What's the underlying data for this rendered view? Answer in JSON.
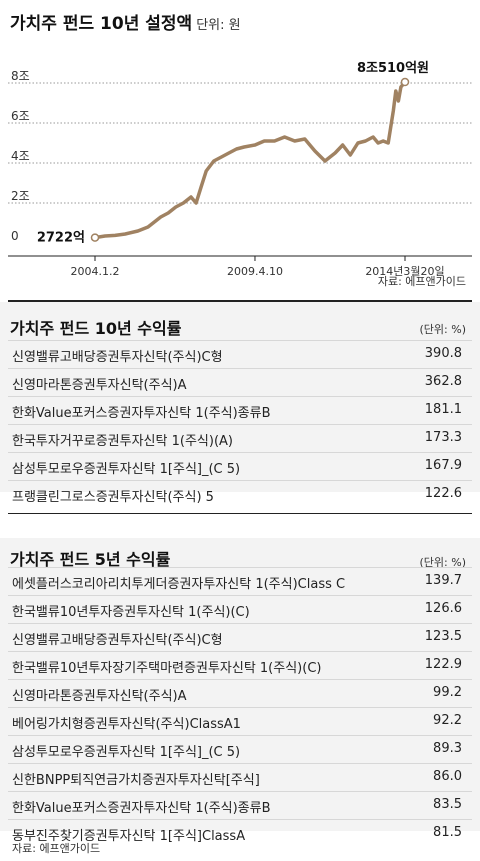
{
  "chart_data": {
    "type": "line",
    "title": "가치주 펀드 10년 설정액",
    "unit": "단위: 원",
    "ylim": [
      0,
      8.4
    ],
    "y_ticks": [
      "0",
      "2조",
      "4조",
      "6조",
      "8조"
    ],
    "x_ticks": [
      "2004.1.2",
      "2009.4.10",
      "2014년3월20일"
    ],
    "grid": true,
    "series": [
      {
        "x": [
          "2004-01-02",
          "2004-05",
          "2004-09",
          "2005-01",
          "2005-06",
          "2005-10",
          "2006-03",
          "2006-06",
          "2006-09",
          "2006-12",
          "2007-03",
          "2007-05",
          "2007-07",
          "2007-09",
          "2007-12",
          "2008-03",
          "2008-06",
          "2008-09",
          "2008-12",
          "2009-04-10",
          "2009-08",
          "2009-12",
          "2010-04",
          "2010-08",
          "2010-12",
          "2011-04",
          "2011-08",
          "2011-12",
          "2012-03",
          "2012-06",
          "2012-09",
          "2012-12",
          "2013-03",
          "2013-05",
          "2013-07",
          "2013-09",
          "2013-11",
          "2013-12",
          "2014-01",
          "2014-02",
          "2014-03-20"
        ],
        "values": [
          0.27,
          0.35,
          0.38,
          0.45,
          0.6,
          0.8,
          1.3,
          1.5,
          1.8,
          2.0,
          2.3,
          2.0,
          2.8,
          3.6,
          4.1,
          4.3,
          4.5,
          4.7,
          4.8,
          4.9,
          5.1,
          5.1,
          5.3,
          5.1,
          5.2,
          4.6,
          4.1,
          4.5,
          4.9,
          4.4,
          5.0,
          5.1,
          5.3,
          5.0,
          5.1,
          5.0,
          6.6,
          7.6,
          7.1,
          7.8,
          8.05
        ]
      }
    ],
    "annotations": {
      "start": "2722억",
      "end": "8조510억원"
    }
  },
  "chart_source": "자료: 에프앤가이드",
  "ten_year": {
    "title": "가치주 펀드 10년 수익률",
    "unit": "(단위: %)",
    "rows": [
      {
        "name": "신영밸류고배당증권투자신탁(주식)C형",
        "value": "390.8"
      },
      {
        "name": "신영마라톤증권투자신탁(주식)A",
        "value": "362.8"
      },
      {
        "name": "한화Value포커스증권자투자신탁 1(주식)종류B",
        "value": "181.1"
      },
      {
        "name": "한국투자거꾸로증권투자신탁 1(주식)(A)",
        "value": "173.3"
      },
      {
        "name": "삼성투모로우증권투자신탁 1[주식]_(C 5)",
        "value": "167.9"
      },
      {
        "name": "프랭클린그로스증권투자신탁(주식) 5",
        "value": "122.6"
      }
    ]
  },
  "five_year": {
    "title": "가치주 펀드 5년 수익률",
    "unit": "(단위: %)",
    "rows": [
      {
        "name": "에셋플러스코리아리치투게더증권자투자신탁 1(주식)Class C",
        "value": "139.7"
      },
      {
        "name": "한국밸류10년투자증권투자신탁 1(주식)(C)",
        "value": "126.6"
      },
      {
        "name": "신영밸류고배당증권투자신탁(주식)C형",
        "value": "123.5"
      },
      {
        "name": "한국밸류10년투자장기주택마련증권투자신탁 1(주식)(C)",
        "value": "122.9"
      },
      {
        "name": "신영마라톤증권투자신탁(주식)A",
        "value": "99.2"
      },
      {
        "name": "베어링가치형증권투자신탁(주식)ClassA1",
        "value": "92.2"
      },
      {
        "name": "삼성투모로우증권투자신탁 1[주식]_(C 5)",
        "value": "89.3"
      },
      {
        "name": "신한BNPP퇴직연금가치증권자투자신탁[주식]",
        "value": "86.0"
      },
      {
        "name": "한화Value포커스증권자투자신탁 1(주식)종류B",
        "value": "83.5"
      },
      {
        "name": "동부진주찾기증권투자신탁 1[주식]ClassA",
        "value": "81.5"
      }
    ]
  },
  "bottom_source": "자료: 에프앤가이드"
}
